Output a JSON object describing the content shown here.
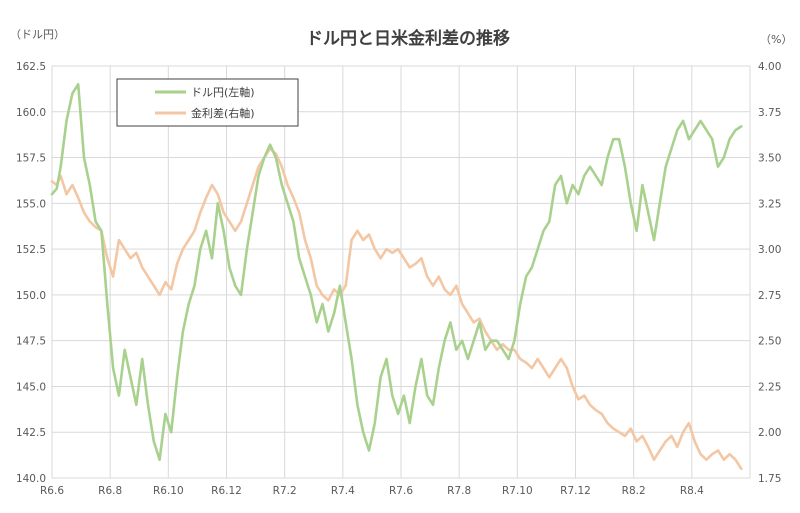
{
  "chart_data": {
    "type": "line",
    "title": "ドル円と日米金利差の推移",
    "left_unit": "（ドル円）",
    "right_unit": "（%）",
    "x_tick_labels": [
      "R6.6",
      "R6.8",
      "R6.10",
      "R6.12",
      "R7.2",
      "R7.4",
      "R7.6",
      "R7.8",
      "R7.10",
      "R7.12",
      "R8.2",
      "R8.4"
    ],
    "y_left": {
      "min": 140.0,
      "max": 162.5,
      "ticks": [
        "140.0",
        "142.5",
        "145.0",
        "147.5",
        "150.0",
        "152.5",
        "155.0",
        "157.5",
        "160.0",
        "162.5"
      ]
    },
    "y_right": {
      "min": 1.75,
      "max": 4.0,
      "ticks": [
        "1.75",
        "2.00",
        "2.25",
        "2.50",
        "2.75",
        "3.00",
        "3.25",
        "3.50",
        "3.75",
        "4.00"
      ]
    },
    "grid": true,
    "legend_position": "top-left",
    "series": [
      {
        "name": "ドル円(左軸)",
        "axis": "left",
        "color": "#a9d18e",
        "points": [
          [
            0.0,
            155.5
          ],
          [
            0.08,
            155.8
          ],
          [
            0.15,
            157.0
          ],
          [
            0.25,
            159.5
          ],
          [
            0.35,
            161.0
          ],
          [
            0.45,
            161.5
          ],
          [
            0.55,
            157.5
          ],
          [
            0.65,
            156.0
          ],
          [
            0.75,
            154.0
          ],
          [
            0.85,
            153.5
          ],
          [
            0.95,
            149.5
          ],
          [
            1.05,
            146.0
          ],
          [
            1.15,
            144.5
          ],
          [
            1.25,
            147.0
          ],
          [
            1.35,
            145.5
          ],
          [
            1.45,
            144.0
          ],
          [
            1.55,
            146.5
          ],
          [
            1.65,
            144.0
          ],
          [
            1.75,
            142.0
          ],
          [
            1.85,
            141.0
          ],
          [
            1.95,
            143.5
          ],
          [
            2.05,
            142.5
          ],
          [
            2.15,
            145.5
          ],
          [
            2.25,
            148.0
          ],
          [
            2.35,
            149.5
          ],
          [
            2.45,
            150.5
          ],
          [
            2.55,
            152.5
          ],
          [
            2.65,
            153.5
          ],
          [
            2.75,
            152.0
          ],
          [
            2.85,
            155.0
          ],
          [
            2.95,
            153.5
          ],
          [
            3.05,
            151.5
          ],
          [
            3.15,
            150.5
          ],
          [
            3.25,
            150.0
          ],
          [
            3.35,
            152.5
          ],
          [
            3.45,
            154.5
          ],
          [
            3.55,
            156.5
          ],
          [
            3.65,
            157.5
          ],
          [
            3.75,
            158.2
          ],
          [
            3.85,
            157.5
          ],
          [
            3.95,
            156.0
          ],
          [
            4.05,
            155.0
          ],
          [
            4.15,
            154.0
          ],
          [
            4.25,
            152.0
          ],
          [
            4.35,
            151.0
          ],
          [
            4.45,
            150.0
          ],
          [
            4.55,
            148.5
          ],
          [
            4.65,
            149.5
          ],
          [
            4.75,
            148.0
          ],
          [
            4.85,
            149.0
          ],
          [
            4.95,
            150.5
          ],
          [
            5.05,
            148.5
          ],
          [
            5.15,
            146.5
          ],
          [
            5.25,
            144.0
          ],
          [
            5.35,
            142.5
          ],
          [
            5.45,
            141.5
          ],
          [
            5.55,
            143.0
          ],
          [
            5.65,
            145.5
          ],
          [
            5.75,
            146.5
          ],
          [
            5.85,
            144.5
          ],
          [
            5.95,
            143.5
          ],
          [
            6.05,
            144.5
          ],
          [
            6.15,
            143.0
          ],
          [
            6.25,
            145.0
          ],
          [
            6.35,
            146.5
          ],
          [
            6.45,
            144.5
          ],
          [
            6.55,
            144.0
          ],
          [
            6.65,
            146.0
          ],
          [
            6.75,
            147.5
          ],
          [
            6.85,
            148.5
          ],
          [
            6.95,
            147.0
          ],
          [
            7.05,
            147.5
          ],
          [
            7.15,
            146.5
          ],
          [
            7.25,
            147.5
          ],
          [
            7.35,
            148.5
          ],
          [
            7.45,
            147.0
          ],
          [
            7.55,
            147.5
          ],
          [
            7.65,
            147.5
          ],
          [
            7.75,
            147.0
          ],
          [
            7.85,
            146.5
          ],
          [
            7.95,
            147.5
          ],
          [
            8.05,
            149.5
          ],
          [
            8.15,
            151.0
          ],
          [
            8.25,
            151.5
          ],
          [
            8.35,
            152.5
          ],
          [
            8.45,
            153.5
          ],
          [
            8.55,
            154.0
          ],
          [
            8.65,
            156.0
          ],
          [
            8.75,
            156.5
          ],
          [
            8.85,
            155.0
          ],
          [
            8.95,
            156.0
          ],
          [
            9.05,
            155.5
          ],
          [
            9.15,
            156.5
          ],
          [
            9.25,
            157.0
          ],
          [
            9.35,
            156.5
          ],
          [
            9.45,
            156.0
          ],
          [
            9.55,
            157.5
          ],
          [
            9.65,
            158.5
          ],
          [
            9.75,
            158.5
          ],
          [
            9.85,
            157.0
          ],
          [
            9.95,
            155.0
          ],
          [
            10.05,
            153.5
          ],
          [
            10.15,
            156.0
          ],
          [
            10.25,
            154.5
          ],
          [
            10.35,
            153.0
          ],
          [
            10.45,
            155.0
          ],
          [
            10.55,
            157.0
          ],
          [
            10.65,
            158.0
          ],
          [
            10.75,
            159.0
          ],
          [
            10.85,
            159.5
          ],
          [
            10.95,
            158.5
          ],
          [
            11.05,
            159.0
          ],
          [
            11.15,
            159.5
          ],
          [
            11.25,
            159.0
          ],
          [
            11.35,
            158.5
          ],
          [
            11.45,
            157.0
          ],
          [
            11.55,
            157.5
          ],
          [
            11.65,
            158.5
          ],
          [
            11.75,
            159.0
          ],
          [
            11.85,
            159.2
          ]
        ]
      },
      {
        "name": "金利差(右軸)",
        "axis": "right",
        "color": "#f4c7a4",
        "points": [
          [
            0.0,
            3.37
          ],
          [
            0.08,
            3.35
          ],
          [
            0.15,
            3.4
          ],
          [
            0.25,
            3.3
          ],
          [
            0.35,
            3.35
          ],
          [
            0.45,
            3.28
          ],
          [
            0.55,
            3.2
          ],
          [
            0.65,
            3.15
          ],
          [
            0.75,
            3.12
          ],
          [
            0.85,
            3.1
          ],
          [
            0.95,
            2.95
          ],
          [
            1.05,
            2.85
          ],
          [
            1.15,
            3.05
          ],
          [
            1.25,
            3.0
          ],
          [
            1.35,
            2.95
          ],
          [
            1.45,
            2.98
          ],
          [
            1.55,
            2.9
          ],
          [
            1.65,
            2.85
          ],
          [
            1.75,
            2.8
          ],
          [
            1.85,
            2.75
          ],
          [
            1.95,
            2.82
          ],
          [
            2.05,
            2.78
          ],
          [
            2.15,
            2.92
          ],
          [
            2.25,
            3.0
          ],
          [
            2.35,
            3.05
          ],
          [
            2.45,
            3.1
          ],
          [
            2.55,
            3.2
          ],
          [
            2.65,
            3.28
          ],
          [
            2.75,
            3.35
          ],
          [
            2.85,
            3.3
          ],
          [
            2.95,
            3.2
          ],
          [
            3.05,
            3.15
          ],
          [
            3.15,
            3.1
          ],
          [
            3.25,
            3.15
          ],
          [
            3.35,
            3.25
          ],
          [
            3.45,
            3.35
          ],
          [
            3.55,
            3.45
          ],
          [
            3.65,
            3.5
          ],
          [
            3.75,
            3.55
          ],
          [
            3.85,
            3.52
          ],
          [
            3.95,
            3.45
          ],
          [
            4.05,
            3.35
          ],
          [
            4.15,
            3.28
          ],
          [
            4.25,
            3.2
          ],
          [
            4.35,
            3.05
          ],
          [
            4.45,
            2.95
          ],
          [
            4.55,
            2.8
          ],
          [
            4.65,
            2.75
          ],
          [
            4.75,
            2.72
          ],
          [
            4.85,
            2.78
          ],
          [
            4.95,
            2.75
          ],
          [
            5.05,
            2.8
          ],
          [
            5.15,
            3.05
          ],
          [
            5.25,
            3.1
          ],
          [
            5.35,
            3.05
          ],
          [
            5.45,
            3.08
          ],
          [
            5.55,
            3.0
          ],
          [
            5.65,
            2.95
          ],
          [
            5.75,
            3.0
          ],
          [
            5.85,
            2.98
          ],
          [
            5.95,
            3.0
          ],
          [
            6.05,
            2.95
          ],
          [
            6.15,
            2.9
          ],
          [
            6.25,
            2.92
          ],
          [
            6.35,
            2.95
          ],
          [
            6.45,
            2.85
          ],
          [
            6.55,
            2.8
          ],
          [
            6.65,
            2.85
          ],
          [
            6.75,
            2.78
          ],
          [
            6.85,
            2.75
          ],
          [
            6.95,
            2.8
          ],
          [
            7.05,
            2.7
          ],
          [
            7.15,
            2.65
          ],
          [
            7.25,
            2.6
          ],
          [
            7.35,
            2.62
          ],
          [
            7.45,
            2.55
          ],
          [
            7.55,
            2.5
          ],
          [
            7.65,
            2.45
          ],
          [
            7.75,
            2.48
          ],
          [
            7.85,
            2.45
          ],
          [
            7.95,
            2.45
          ],
          [
            8.05,
            2.4
          ],
          [
            8.15,
            2.38
          ],
          [
            8.25,
            2.35
          ],
          [
            8.35,
            2.4
          ],
          [
            8.45,
            2.35
          ],
          [
            8.55,
            2.3
          ],
          [
            8.65,
            2.35
          ],
          [
            8.75,
            2.4
          ],
          [
            8.85,
            2.35
          ],
          [
            8.95,
            2.25
          ],
          [
            9.05,
            2.18
          ],
          [
            9.15,
            2.2
          ],
          [
            9.25,
            2.15
          ],
          [
            9.35,
            2.12
          ],
          [
            9.45,
            2.1
          ],
          [
            9.55,
            2.05
          ],
          [
            9.65,
            2.02
          ],
          [
            9.75,
            2.0
          ],
          [
            9.85,
            1.98
          ],
          [
            9.95,
            2.02
          ],
          [
            10.05,
            1.95
          ],
          [
            10.15,
            1.98
          ],
          [
            10.25,
            1.92
          ],
          [
            10.35,
            1.85
          ],
          [
            10.45,
            1.9
          ],
          [
            10.55,
            1.95
          ],
          [
            10.65,
            1.98
          ],
          [
            10.75,
            1.92
          ],
          [
            10.85,
            2.0
          ],
          [
            10.95,
            2.05
          ],
          [
            11.05,
            1.95
          ],
          [
            11.15,
            1.88
          ],
          [
            11.25,
            1.85
          ],
          [
            11.35,
            1.88
          ],
          [
            11.45,
            1.9
          ],
          [
            11.55,
            1.85
          ],
          [
            11.65,
            1.88
          ],
          [
            11.75,
            1.85
          ],
          [
            11.85,
            1.8
          ]
        ]
      }
    ]
  }
}
